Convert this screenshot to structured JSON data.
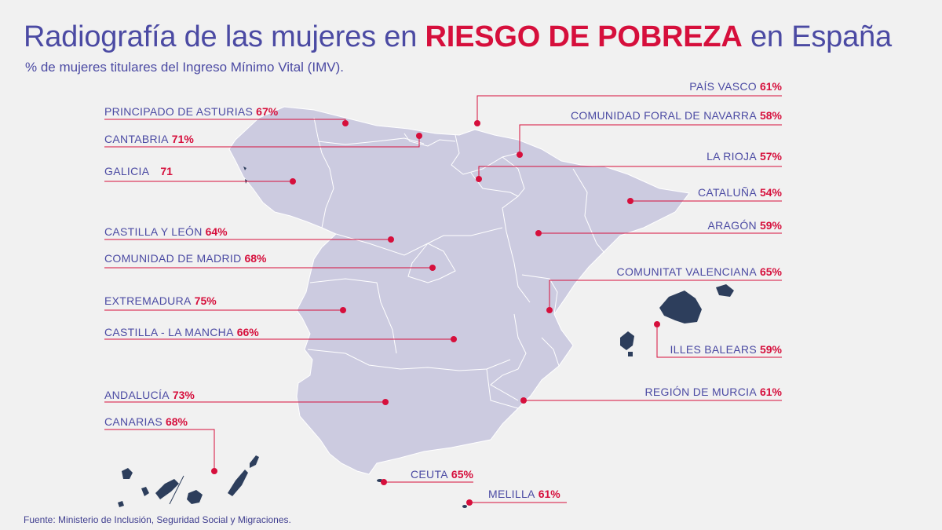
{
  "title": {
    "part1": "Radiografía de las mujeres en ",
    "highlight": "RIESGO DE POBREZA",
    "part2": " en España"
  },
  "subtitle": "% de mujeres titulares del Ingreso Mínimo Vital (IMV).",
  "source": "Fuente: Ministerio de Inclusión, Seguridad Social y Migraciones.",
  "colors": {
    "accent": "#d60f3c",
    "text": "#4b4aa3",
    "land": "#cccbe0",
    "islands": "#2d3e5c",
    "background": "#f1f1f1"
  },
  "regions": [
    {
      "id": "asturias",
      "name": "PRINCIPADO DE ASTURIAS",
      "value": "67%"
    },
    {
      "id": "cantabria",
      "name": "CANTABRIA",
      "value": "71%"
    },
    {
      "id": "galicia",
      "name": "GALICIA",
      "value": "71"
    },
    {
      "id": "castilla-leon",
      "name": "CASTILLA Y LEÓN",
      "value": "64%"
    },
    {
      "id": "madrid",
      "name": "COMUNIDAD DE MADRID",
      "value": "68%"
    },
    {
      "id": "extremadura",
      "name": "EXTREMADURA",
      "value": "75%"
    },
    {
      "id": "castilla-la-mancha",
      "name": "CASTILLA - LA MANCHA",
      "value": "66%"
    },
    {
      "id": "andalucia",
      "name": "ANDALUCÍA",
      "value": "73%"
    },
    {
      "id": "canarias",
      "name": "CANARIAS",
      "value": "68%"
    },
    {
      "id": "pais-vasco",
      "name": "PAÍS VASCO",
      "value": "61%"
    },
    {
      "id": "navarra",
      "name": "COMUNIDAD FORAL DE NAVARRA",
      "value": "58%"
    },
    {
      "id": "la-rioja",
      "name": "LA RIOJA",
      "value": "57%"
    },
    {
      "id": "cataluna",
      "name": "CATALUÑA",
      "value": "54%"
    },
    {
      "id": "aragon",
      "name": "ARAGÓN",
      "value": "59%"
    },
    {
      "id": "valencia",
      "name": "COMUNITAT VALENCIANA",
      "value": "65%"
    },
    {
      "id": "baleares",
      "name": "ILLES BALEARS",
      "value": "59%"
    },
    {
      "id": "murcia",
      "name": "REGIÓN DE MURCIA",
      "value": "61%"
    },
    {
      "id": "ceuta",
      "name": "CEUTA",
      "value": "65%"
    },
    {
      "id": "melilla",
      "name": "MELILLA",
      "value": "61%"
    }
  ]
}
